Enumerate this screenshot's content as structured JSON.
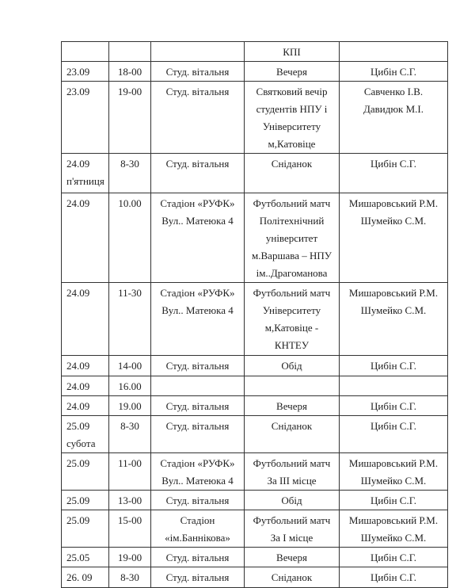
{
  "table": {
    "rows": [
      [
        [],
        [],
        [],
        [
          "КПІ"
        ],
        []
      ],
      [
        [
          "23.09"
        ],
        [
          "18-00"
        ],
        [
          "Студ. вітальня"
        ],
        [
          "Вечеря"
        ],
        [
          "Цибін С.Г."
        ]
      ],
      [
        [
          "23.09"
        ],
        [
          "19-00"
        ],
        [
          "Студ. вітальня"
        ],
        [
          "Святковий вечір",
          "студентів НПУ і",
          "Університету",
          "м,Катовіце"
        ],
        [
          "Савченко І.В.",
          "Давидюк М.І."
        ]
      ],
      [
        [
          "24.09",
          "п'ятниця"
        ],
        [
          "8-30"
        ],
        [
          "Студ. вітальня"
        ],
        [
          "Сніданок"
        ],
        [
          "Цибін С.Г."
        ]
      ],
      [
        [
          "24.09"
        ],
        [
          "10.00"
        ],
        [
          "Стадіон «РУФК»",
          "Вул.. Матеюка 4"
        ],
        [
          "Футбольний матч",
          "Політехнічний",
          "університет",
          "м.Варшава – НПУ",
          "ім..Драгоманова"
        ],
        [
          "Мишаровський Р.М.",
          "Шумейко С.М."
        ]
      ],
      [
        [
          "24.09"
        ],
        [
          "11-30"
        ],
        [
          "Стадіон «РУФК»",
          "Вул.. Матеюка 4"
        ],
        [
          "Футбольний матч",
          "Університету",
          "м,Катовіце -",
          "КНТЕУ"
        ],
        [
          "Мишаровський Р.М.",
          "Шумейко С.М."
        ]
      ],
      [
        [
          "24.09"
        ],
        [
          "14-00"
        ],
        [
          "Студ. вітальня"
        ],
        [
          "Обід"
        ],
        [
          "Цибін С.Г."
        ]
      ],
      [
        [
          "24.09"
        ],
        [
          "16.00"
        ],
        [],
        [],
        []
      ],
      [
        [
          "24.09"
        ],
        [
          "19.00"
        ],
        [
          "Студ. вітальня"
        ],
        [
          "Вечеря"
        ],
        [
          "Цибін С.Г."
        ]
      ],
      [
        [
          "25.09",
          "субота"
        ],
        [
          "8-30"
        ],
        [
          "Студ. вітальня"
        ],
        [
          "Сніданок"
        ],
        [
          "Цибін С.Г."
        ]
      ],
      [
        [
          "25.09"
        ],
        [
          "11-00"
        ],
        [
          "Стадіон «РУФК»",
          "Вул.. Матеюка 4"
        ],
        [
          "Футбольний матч",
          "За ІІІ місце"
        ],
        [
          "Мишаровський Р.М.",
          "Шумейко С.М."
        ]
      ],
      [
        [
          "25.09"
        ],
        [
          "13-00"
        ],
        [
          "Студ. вітальня"
        ],
        [
          "Обід"
        ],
        [
          "Цибін С.Г."
        ]
      ],
      [
        [
          "25.09"
        ],
        [
          "15-00"
        ],
        [
          "Стадіон",
          "«ім.Баннікова»"
        ],
        [
          "Футбольний матч",
          "За І місце"
        ],
        [
          "Мишаровський Р.М.",
          "Шумейко С.М."
        ]
      ],
      [
        [
          "25.05"
        ],
        [
          "19-00"
        ],
        [
          "Студ. вітальня"
        ],
        [
          "Вечеря"
        ],
        [
          "Цибін С.Г."
        ]
      ],
      [
        [
          "26. 09"
        ],
        [
          "8-30"
        ],
        [
          "Студ. вітальня"
        ],
        [
          "Сніданок"
        ],
        [
          "Цибін С.Г."
        ]
      ]
    ]
  }
}
